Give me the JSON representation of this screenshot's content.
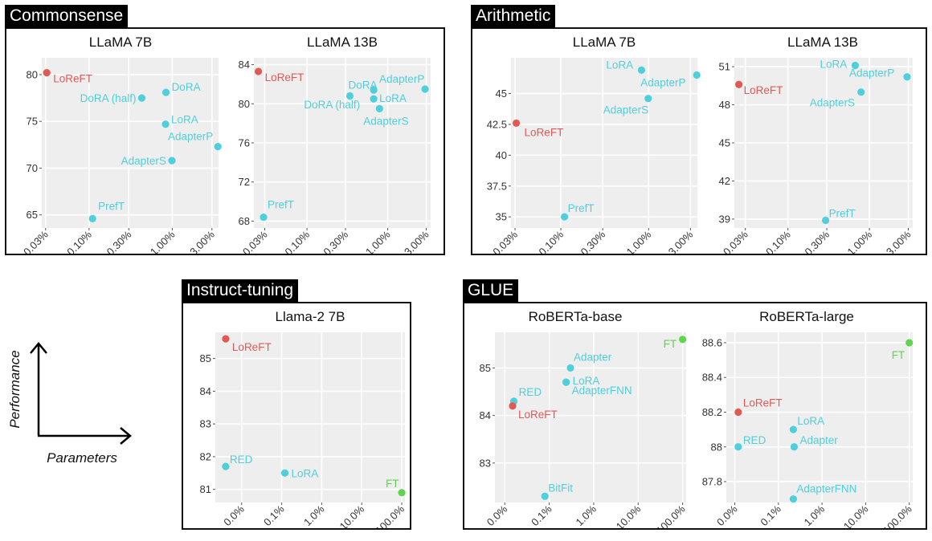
{
  "colors": {
    "loreft": "#e05a55",
    "baseline": "#4fcfdc",
    "ft": "#5fd54f",
    "plot_bg": "#eeeeee",
    "grid": "#ffffff"
  },
  "legend": {
    "y_label": "Performance",
    "x_label": "Parameters"
  },
  "groups": [
    {
      "title": "Commonsense"
    },
    {
      "title": "Arithmetic"
    },
    {
      "title": "Instruct-tuning"
    },
    {
      "title": "GLUE"
    }
  ],
  "chart_data": [
    {
      "group": "Commonsense",
      "type": "scatter",
      "title": "LLaMA 7B",
      "x_scale": "log",
      "xticks": [
        0.03,
        0.1,
        0.3,
        1,
        3
      ],
      "xtick_labels": [
        "0.03%",
        "0.10%",
        "0.30%",
        "1.00%",
        "3.00%"
      ],
      "yticks": [
        65,
        70,
        75,
        80
      ],
      "ytick_labels": [
        "65",
        "70",
        "75",
        "80"
      ],
      "xlim": [
        0.027,
        3.6
      ],
      "ylim": [
        63.6,
        81.8
      ],
      "points": [
        {
          "label": "LoReFT",
          "x": 0.031,
          "y": 80.2,
          "kind": "loreft"
        },
        {
          "label": "DoRA",
          "x": 0.84,
          "y": 78.1,
          "kind": "baseline"
        },
        {
          "label": "DoRA (half)",
          "x": 0.43,
          "y": 77.5,
          "kind": "baseline"
        },
        {
          "label": "LoRA",
          "x": 0.83,
          "y": 74.7,
          "kind": "baseline"
        },
        {
          "label": "AdapterP",
          "x": 3.54,
          "y": 72.3,
          "kind": "baseline"
        },
        {
          "label": "AdapterS",
          "x": 0.99,
          "y": 70.8,
          "kind": "baseline"
        },
        {
          "label": "PrefT",
          "x": 0.11,
          "y": 64.6,
          "kind": "baseline"
        }
      ]
    },
    {
      "group": "Commonsense",
      "type": "scatter",
      "title": "LLaMA 13B",
      "x_scale": "log",
      "xticks": [
        0.03,
        0.1,
        0.3,
        1,
        3
      ],
      "xtick_labels": [
        "0.03%",
        "0.10%",
        "0.30%",
        "1.00%",
        "3.00%"
      ],
      "yticks": [
        68,
        72,
        76,
        80,
        84
      ],
      "ytick_labels": [
        "68",
        "72",
        "76",
        "80",
        "84"
      ],
      "xlim": [
        0.022,
        3.4
      ],
      "ylim": [
        67.3,
        84.7
      ],
      "points": [
        {
          "label": "LoReFT",
          "x": 0.025,
          "y": 83.3,
          "kind": "loreft"
        },
        {
          "label": "DoRA",
          "x": 0.34,
          "y": 80.8,
          "kind": "baseline"
        },
        {
          "label": "AdapterP",
          "x": 2.9,
          "y": 81.5,
          "kind": "baseline"
        },
        {
          "label": "LoRA",
          "x": 0.67,
          "y": 80.5,
          "kind": "baseline"
        },
        {
          "label": "DoRA (half)",
          "x": 0.67,
          "y": 81.4,
          "kind": "baseline"
        },
        {
          "label": "AdapterS",
          "x": 0.79,
          "y": 79.5,
          "kind": "baseline"
        },
        {
          "label": "PrefT",
          "x": 0.029,
          "y": 68.4,
          "kind": "baseline"
        }
      ]
    },
    {
      "group": "Arithmetic",
      "type": "scatter",
      "title": "LLaMA 7B",
      "x_scale": "log",
      "xticks": [
        0.03,
        0.1,
        0.3,
        1,
        3
      ],
      "xtick_labels": [
        "0.03%",
        "0.10%",
        "0.30%",
        "1.00%",
        "3.00%"
      ],
      "yticks": [
        35,
        37.5,
        40,
        42.5,
        45
      ],
      "ytick_labels": [
        "35",
        "37.5",
        "40",
        "42.5",
        "45"
      ],
      "xlim": [
        0.027,
        3.6
      ],
      "ylim": [
        34.1,
        47.9
      ],
      "points": [
        {
          "label": "LoReFT",
          "x": 0.031,
          "y": 42.6,
          "kind": "loreft"
        },
        {
          "label": "LoRA",
          "x": 0.83,
          "y": 46.9,
          "kind": "baseline"
        },
        {
          "label": "AdapterP",
          "x": 3.54,
          "y": 46.5,
          "kind": "baseline"
        },
        {
          "label": "AdapterS",
          "x": 0.99,
          "y": 44.6,
          "kind": "baseline"
        },
        {
          "label": "PrefT",
          "x": 0.11,
          "y": 35.0,
          "kind": "baseline"
        }
      ]
    },
    {
      "group": "Arithmetic",
      "type": "scatter",
      "title": "LLaMA 13B",
      "x_scale": "log",
      "xticks": [
        0.03,
        0.1,
        0.3,
        1,
        3
      ],
      "xtick_labels": [
        "0.03%",
        "0.10%",
        "0.30%",
        "1.00%",
        "3.00%"
      ],
      "yticks": [
        39,
        42,
        45,
        48,
        51
      ],
      "ytick_labels": [
        "39",
        "42",
        "45",
        "48",
        "51"
      ],
      "xlim": [
        0.022,
        3.4
      ],
      "ylim": [
        38.3,
        51.7
      ],
      "points": [
        {
          "label": "LoReFT",
          "x": 0.025,
          "y": 49.6,
          "kind": "loreft"
        },
        {
          "label": "LoRA",
          "x": 0.67,
          "y": 51.1,
          "kind": "baseline"
        },
        {
          "label": "AdapterP",
          "x": 2.9,
          "y": 50.2,
          "kind": "baseline"
        },
        {
          "label": "AdapterS",
          "x": 0.79,
          "y": 49.0,
          "kind": "baseline"
        },
        {
          "label": "PrefT",
          "x": 0.29,
          "y": 38.9,
          "kind": "baseline"
        }
      ]
    },
    {
      "group": "Instruct-tuning",
      "type": "scatter",
      "title": "Llama-2 7B",
      "x_scale": "log",
      "xticks": [
        0.01,
        0.1,
        1,
        10,
        100
      ],
      "xtick_labels": [
        "0.0%",
        "0.1%",
        "1.0%",
        "10.0%",
        "100.0%"
      ],
      "yticks": [
        81,
        82,
        83,
        84,
        85
      ],
      "ytick_labels": [
        "81",
        "82",
        "83",
        "84",
        "85"
      ],
      "xlim": [
        0.0022,
        120
      ],
      "ylim": [
        80.6,
        85.8
      ],
      "points": [
        {
          "label": "LoReFT",
          "x": 0.004,
          "y": 85.6,
          "kind": "loreft"
        },
        {
          "label": "RED",
          "x": 0.004,
          "y": 81.7,
          "kind": "baseline"
        },
        {
          "label": "LoRA",
          "x": 0.12,
          "y": 81.5,
          "kind": "baseline"
        },
        {
          "label": "FT",
          "x": 100,
          "y": 80.9,
          "kind": "ft"
        }
      ]
    },
    {
      "group": "GLUE",
      "type": "scatter",
      "title": "RoBERTa-base",
      "x_scale": "log",
      "xticks": [
        0.01,
        0.1,
        1,
        10,
        100
      ],
      "xtick_labels": [
        "0.0%",
        "0.1%",
        "1.0%",
        "10.0%",
        "100.0%"
      ],
      "yticks": [
        83,
        84,
        85
      ],
      "ytick_labels": [
        "83",
        "84",
        "85"
      ],
      "xlim": [
        0.006,
        120
      ],
      "ylim": [
        82.17,
        85.75
      ],
      "points": [
        {
          "label": "FT",
          "x": 100,
          "y": 85.6,
          "kind": "ft"
        },
        {
          "label": "Adapter",
          "x": 0.3,
          "y": 85.0,
          "kind": "baseline"
        },
        {
          "label": "RED",
          "x": 0.016,
          "y": 84.3,
          "kind": "baseline"
        },
        {
          "label": "LoRA",
          "x": 0.24,
          "y": 84.7,
          "kind": "baseline"
        },
        {
          "label": "AdapterFNN",
          "x": 0.24,
          "y": 84.7,
          "kind": "baseline"
        },
        {
          "label": "LoReFT",
          "x": 0.015,
          "y": 84.2,
          "kind": "loreft"
        },
        {
          "label": "BitFit",
          "x": 0.08,
          "y": 82.3,
          "kind": "baseline"
        }
      ]
    },
    {
      "group": "GLUE",
      "type": "scatter",
      "title": "RoBERTa-large",
      "x_scale": "log",
      "xticks": [
        0.01,
        0.1,
        1,
        10,
        100
      ],
      "xtick_labels": [
        "0.0%",
        "0.1%",
        "1.0%",
        "10.0%",
        "100.0%"
      ],
      "yticks": [
        87.8,
        88,
        88.2,
        88.4,
        88.6
      ],
      "ytick_labels": [
        "87.8",
        "88",
        "88.2",
        "88.4",
        "88.6"
      ],
      "xlim": [
        0.0064,
        120
      ],
      "ylim": [
        87.68,
        88.66
      ],
      "points": [
        {
          "label": "FT",
          "x": 100,
          "y": 88.6,
          "kind": "ft"
        },
        {
          "label": "LoReFT",
          "x": 0.012,
          "y": 88.2,
          "kind": "loreft"
        },
        {
          "label": "LoRA",
          "x": 0.22,
          "y": 88.1,
          "kind": "baseline"
        },
        {
          "label": "RED",
          "x": 0.012,
          "y": 88.0,
          "kind": "baseline"
        },
        {
          "label": "Adapter",
          "x": 0.23,
          "y": 88.0,
          "kind": "baseline"
        },
        {
          "label": "AdapterFNN",
          "x": 0.22,
          "y": 87.7,
          "kind": "baseline"
        }
      ]
    }
  ]
}
